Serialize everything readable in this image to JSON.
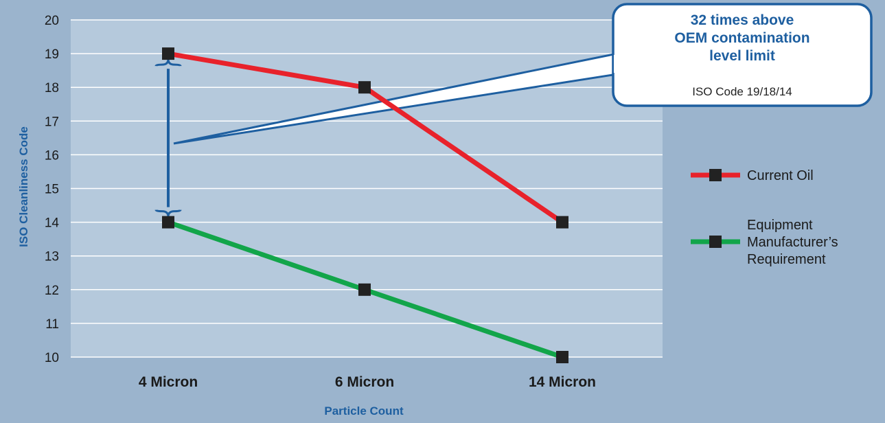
{
  "chart_data": {
    "type": "line",
    "categories": [
      "4 Micron",
      "6 Micron",
      "14 Micron"
    ],
    "series": [
      {
        "name": "Current Oil",
        "values": [
          19,
          18,
          14
        ],
        "color": "#e8222b"
      },
      {
        "name": "Equipment Manufacturer's Requirement",
        "values": [
          14,
          12,
          10
        ],
        "color": "#12a54a"
      }
    ],
    "title": "",
    "xlabel": "Particle Count",
    "ylabel": "ISO Cleanliness Code",
    "ylim": [
      10,
      20
    ],
    "yticks": [
      "10",
      "11",
      "12",
      "13",
      "14",
      "15",
      "16",
      "17",
      "18",
      "19",
      "20"
    ],
    "grid": true,
    "legend_position": "right",
    "legend_lines": [
      [
        "Current Oil"
      ],
      [
        "Equipment",
        "Manufacturer’s",
        "Requirement"
      ]
    ],
    "marker_color": "#222222",
    "plot_background": "#b5c9dc",
    "page_background": "#9bb4cd",
    "annotation": {
      "title_lines": [
        "32 times above",
        "OEM contamination",
        "level limit"
      ],
      "subtitle": "ISO Code 19/18/14",
      "color": "#1e5fa0",
      "from_value": 19,
      "to_value": 14,
      "category": "4 Micron"
    }
  }
}
